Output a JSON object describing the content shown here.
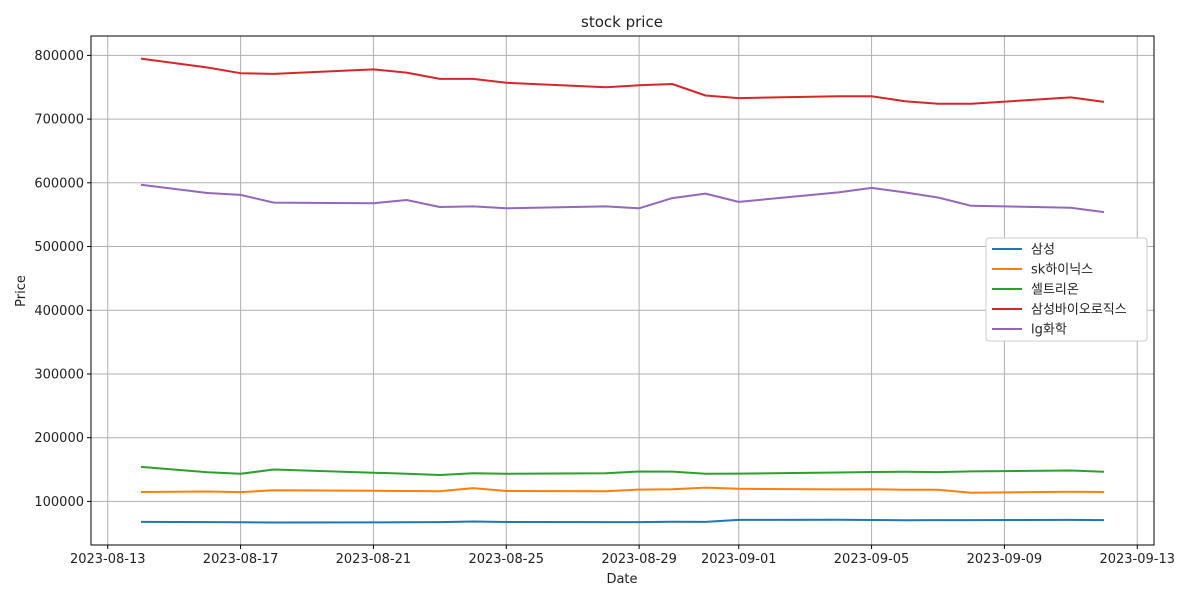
{
  "chart_data": {
    "type": "line",
    "title": "stock price",
    "xlabel": "Date",
    "ylabel": "Price",
    "x": [
      "2023-08-14",
      "2023-08-16",
      "2023-08-17",
      "2023-08-18",
      "2023-08-21",
      "2023-08-22",
      "2023-08-23",
      "2023-08-24",
      "2023-08-25",
      "2023-08-28",
      "2023-08-29",
      "2023-08-30",
      "2023-08-31",
      "2023-09-01",
      "2023-09-04",
      "2023-09-05",
      "2023-09-06",
      "2023-09-07",
      "2023-09-08",
      "2023-09-11",
      "2023-09-12"
    ],
    "series": [
      {
        "name": "삼성",
        "color": "#1f77b4",
        "values": [
          67900,
          67600,
          67400,
          66900,
          67100,
          67200,
          67600,
          68500,
          67700,
          67600,
          67600,
          68000,
          67900,
          71000,
          71300,
          70800,
          70300,
          70600,
          70700,
          71000,
          70700
        ]
      },
      {
        "name": "sk하이닉스",
        "color": "#ff7f0e",
        "values": [
          114700,
          115600,
          114600,
          117500,
          116600,
          116400,
          116100,
          120900,
          116400,
          115800,
          118500,
          119100,
          121700,
          119800,
          118800,
          119100,
          118200,
          118400,
          113700,
          115300,
          114800
        ]
      },
      {
        "name": "셀트리온",
        "color": "#2ca02c",
        "values": [
          154200,
          145800,
          143400,
          150100,
          145000,
          143500,
          141500,
          144100,
          143300,
          144300,
          147000,
          146800,
          143300,
          143600,
          145400,
          146100,
          146500,
          146000,
          147100,
          148500,
          146500
        ]
      },
      {
        "name": "삼성바이오로직스",
        "color": "#d62728",
        "values": [
          795000,
          781000,
          772000,
          771000,
          778000,
          773000,
          763000,
          763000,
          757000,
          750000,
          753000,
          755000,
          737000,
          733000,
          736000,
          736000,
          728000,
          724000,
          724000,
          734000,
          727000
        ]
      },
      {
        "name": "lg화학",
        "color": "#9467bd",
        "values": [
          597000,
          584000,
          581000,
          569000,
          568000,
          573000,
          562000,
          563000,
          560000,
          563000,
          560000,
          576000,
          583000,
          570000,
          585000,
          592000,
          585000,
          577000,
          564000,
          561000,
          554000
        ]
      }
    ],
    "x_ticks": [
      "2023-08-13",
      "2023-08-17",
      "2023-08-21",
      "2023-08-25",
      "2023-08-29",
      "2023-09-01",
      "2023-09-05",
      "2023-09-09",
      "2023-09-13"
    ],
    "x_range": [
      "2023-08-12T11:54",
      "2023-09-13T12:06"
    ],
    "y_ticks": [
      100000,
      200000,
      300000,
      400000,
      500000,
      600000,
      700000,
      800000
    ],
    "ylim": [
      31600,
      830400
    ],
    "grid": true,
    "legend_position": "center-right"
  }
}
